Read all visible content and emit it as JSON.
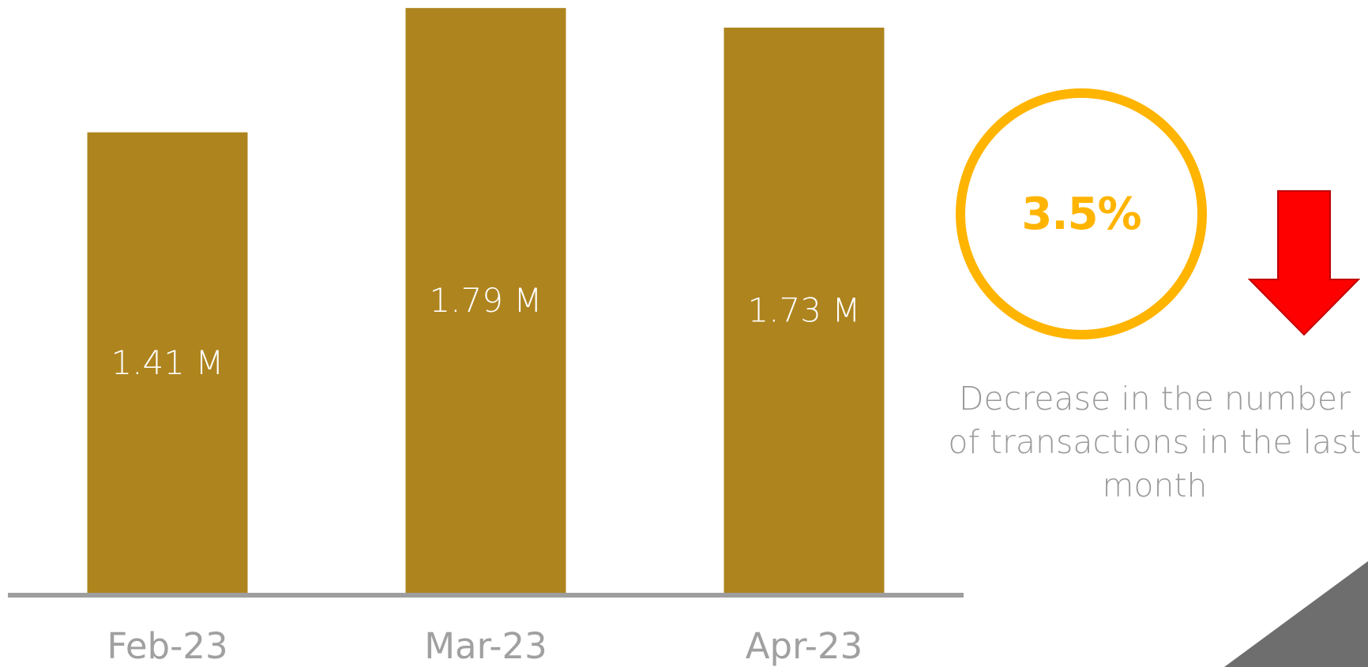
{
  "chart_data": {
    "type": "bar",
    "categories": [
      "Feb-23",
      "Mar-23",
      "Apr-23"
    ],
    "values": [
      1.41,
      1.79,
      1.73
    ],
    "value_labels": [
      "1.41 M",
      "1.79 M",
      "1.73 M"
    ],
    "ylim": [
      0,
      1.8
    ],
    "bar_color": "#AE841F",
    "axis_color": "#9e9e9e",
    "grid": false
  },
  "kpi": {
    "value": "3.5%",
    "caption": "Decrease in the number of transactions in the last month",
    "ring_color": "#FFB400",
    "arrow_color": "#FF0000",
    "arrow_icon": "down-arrow-icon"
  }
}
